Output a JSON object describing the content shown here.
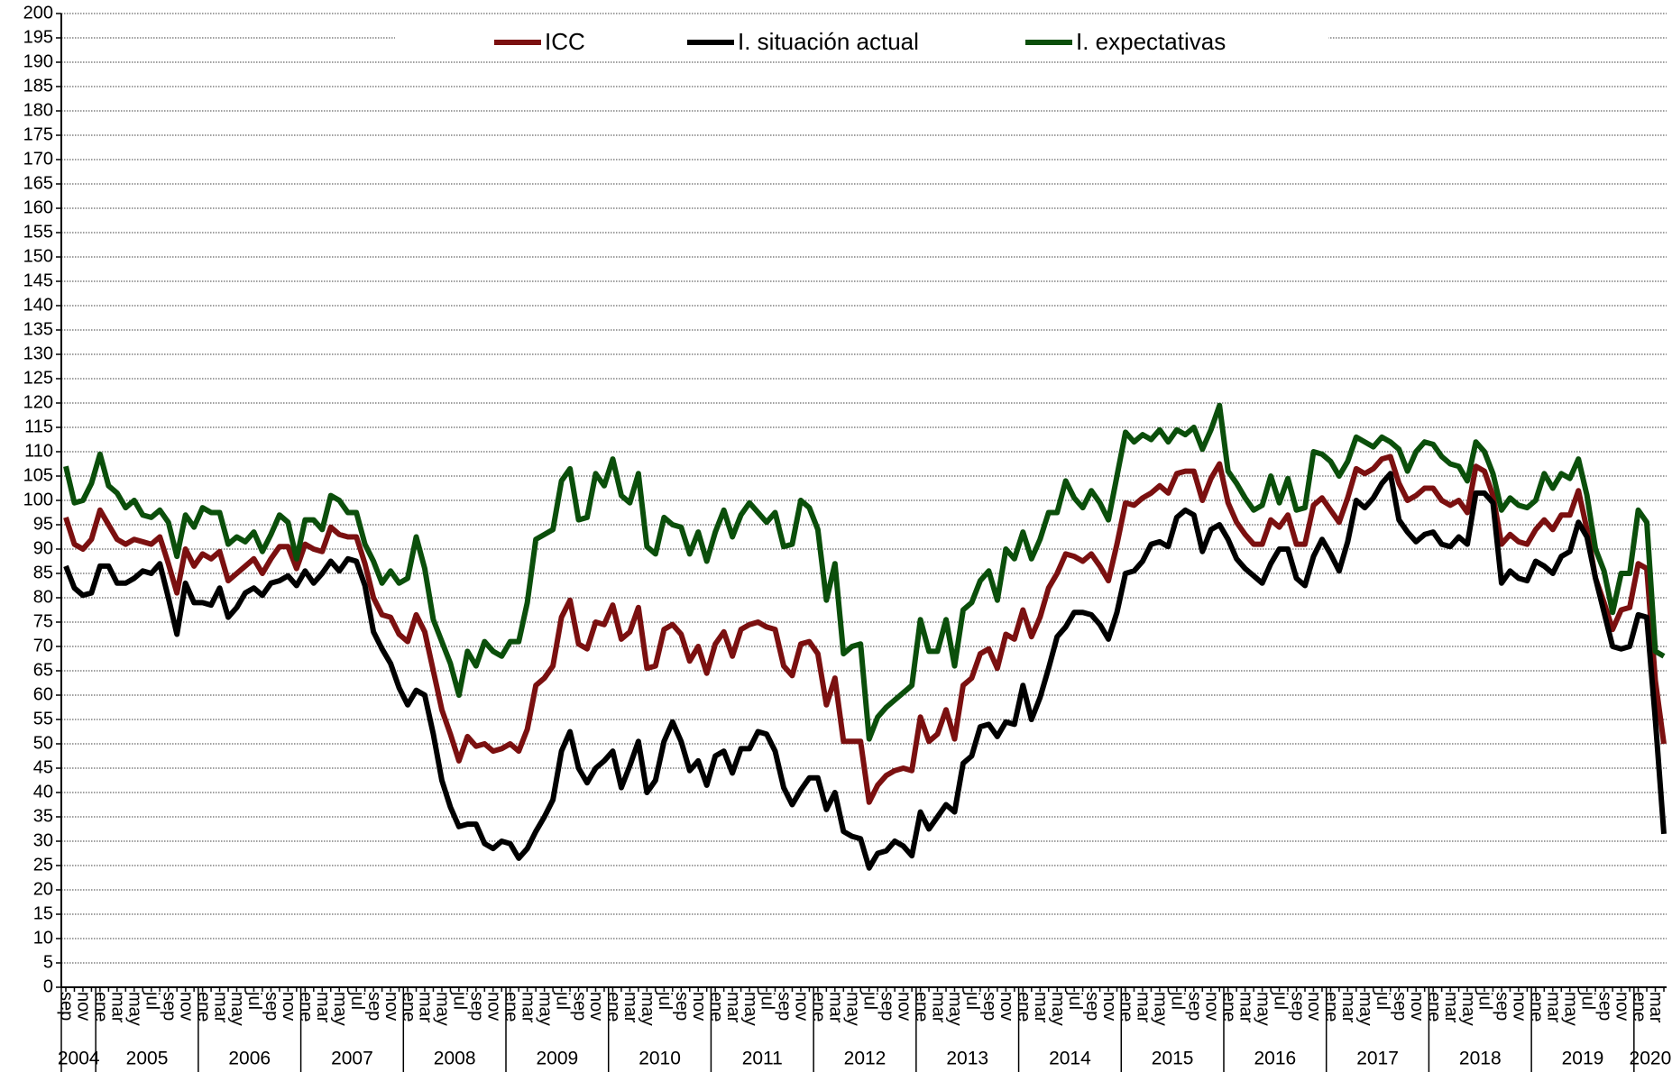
{
  "chart_data": {
    "type": "line",
    "categories": [
      "sep",
      null,
      "nov",
      null,
      "ene",
      null,
      "mar",
      null,
      "may",
      null,
      "jul",
      null,
      "sep",
      null,
      "nov",
      null,
      "ene",
      null,
      "mar",
      null,
      "may",
      null,
      "jul",
      null,
      "sep",
      null,
      "nov",
      null,
      "ene",
      null,
      "mar",
      null,
      "may",
      null,
      "jul",
      null,
      "sep",
      null,
      "nov",
      null,
      "ene",
      null,
      "mar",
      null,
      "may",
      null,
      "jul",
      null,
      "sep",
      null,
      "nov",
      null,
      "ene",
      null,
      "mar",
      null,
      "may",
      null,
      "jul",
      null,
      "sep",
      null,
      "nov",
      null,
      "ene",
      null,
      "mar",
      null,
      "may",
      null,
      "jul",
      null,
      "sep",
      null,
      "nov",
      null,
      "ene",
      null,
      "mar",
      null,
      "may",
      null,
      "jul",
      null,
      "sep",
      null,
      "nov",
      null,
      "ene",
      null,
      "mar",
      null,
      "may",
      null,
      "jul",
      null,
      "sep",
      null,
      "nov",
      null,
      "ene",
      null,
      "mar",
      null,
      "may",
      null,
      "jul",
      null,
      "sep",
      null,
      "nov",
      null,
      "ene",
      null,
      "mar",
      null,
      "may",
      null,
      "jul",
      null,
      "sep",
      null,
      "nov",
      null,
      "ene",
      null,
      "mar",
      null,
      "may",
      null,
      "jul",
      null,
      "sep",
      null,
      "nov",
      null,
      "ene",
      null,
      "mar",
      null,
      "may",
      null,
      "jul",
      null,
      "sep",
      null,
      "nov",
      null,
      "ene",
      null,
      "mar",
      null,
      "may",
      null,
      "jul",
      null,
      "sep",
      null,
      "nov",
      null,
      "ene",
      null,
      "mar",
      null,
      "may",
      null,
      "jul",
      null,
      "sep",
      null,
      "nov",
      null,
      "ene",
      null,
      "mar",
      null,
      "may",
      null,
      "jul",
      null,
      "sep",
      null,
      "nov",
      null,
      "ene",
      null,
      "mar",
      null
    ],
    "year_labels": [
      "2004",
      "2005",
      "2006",
      "2007",
      "2008",
      "2009",
      "2010",
      "2011",
      "2012",
      "2013",
      "2014",
      "2015",
      "2016",
      "2017",
      "2018",
      "2019",
      "2020"
    ],
    "series": [
      {
        "name": "ICC",
        "color": "#7b1010",
        "values": [
          96.5,
          91,
          90,
          92,
          98,
          95,
          92,
          91,
          92,
          91.5,
          91,
          92.5,
          87,
          81,
          90,
          86.5,
          89,
          88,
          89.5,
          83.5,
          85,
          86.5,
          88,
          85,
          88,
          90.5,
          90.5,
          86,
          91,
          90,
          89.5,
          94.5,
          93,
          92.5,
          92.5,
          87,
          80,
          76.5,
          76,
          72.5,
          71,
          76.5,
          73,
          65,
          57,
          52,
          46.5,
          51.5,
          49.5,
          50,
          48.5,
          49,
          50,
          48.5,
          53,
          62,
          63.5,
          66,
          76,
          79.5,
          70.5,
          69.5,
          75,
          74.5,
          78.5,
          71.5,
          73,
          78,
          65.5,
          66,
          73.5,
          74.5,
          72.5,
          67,
          70,
          64.5,
          70.5,
          73,
          68,
          73.5,
          74.5,
          75,
          74,
          73.5,
          66,
          64,
          70.5,
          71,
          68.5,
          58,
          63.5,
          50.5,
          50.5,
          50.5,
          38,
          41.5,
          43.5,
          44.5,
          45,
          44.5,
          55.5,
          50.5,
          52,
          57,
          51,
          62,
          63.5,
          68.5,
          69.5,
          65.5,
          72.5,
          71.5,
          77.5,
          72,
          76,
          82,
          85,
          89,
          88.5,
          87.5,
          89,
          86.5,
          83.5,
          91,
          99.5,
          99,
          100.5,
          101.5,
          103,
          101.5,
          105.5,
          106,
          106,
          100,
          104.5,
          107.5,
          99.5,
          95.5,
          93,
          91,
          91,
          96,
          94.5,
          97,
          91,
          91,
          99,
          100.5,
          98,
          95.5,
          100.5,
          106.5,
          105.5,
          106.5,
          108.5,
          109,
          103.5,
          100,
          101,
          102.5,
          102.5,
          100,
          99,
          100,
          97.5,
          107,
          106,
          101,
          91,
          93,
          91.5,
          91,
          94,
          96,
          94,
          97,
          97,
          102,
          94,
          84,
          79,
          73.5,
          77.5,
          78,
          87,
          86,
          63,
          50
        ]
      },
      {
        "name": "I. situación actual",
        "color": "#000000",
        "values": [
          86.5,
          82,
          80.5,
          81,
          86.5,
          86.5,
          83,
          83,
          84,
          85.5,
          85,
          87,
          80,
          72.5,
          83,
          79,
          79,
          78.5,
          82,
          76,
          78,
          81,
          82,
          80.5,
          83,
          83.5,
          84.5,
          82.5,
          85.5,
          83,
          85,
          87.5,
          85.5,
          88,
          87.5,
          82.5,
          73,
          69.5,
          66.5,
          61.5,
          58,
          61,
          60,
          52,
          42.5,
          37,
          33,
          33.5,
          33.5,
          29.5,
          28.5,
          30,
          29.5,
          26.5,
          28.5,
          32,
          35,
          38.5,
          48.5,
          52.5,
          45,
          42,
          45,
          46.5,
          48.5,
          41,
          45.5,
          50.5,
          40,
          42.5,
          50.5,
          54.5,
          50.5,
          44.5,
          46.5,
          41.5,
          47.5,
          48.5,
          44,
          49,
          49,
          52.5,
          52,
          48.5,
          41,
          37.5,
          40.5,
          43,
          43,
          36.5,
          40,
          32,
          31,
          30.5,
          24.5,
          27.5,
          28,
          30,
          29,
          27,
          36,
          32.5,
          35,
          37.5,
          36,
          46,
          47.5,
          53.5,
          54,
          51.5,
          54.5,
          54,
          62,
          55,
          59.5,
          65.5,
          72,
          74,
          77,
          77,
          76.5,
          74.5,
          71.5,
          77,
          85,
          85.5,
          87.5,
          91,
          91.5,
          90.5,
          96.5,
          98,
          97,
          89.5,
          94,
          95,
          92,
          88,
          86,
          84.5,
          83,
          87,
          90,
          90,
          84,
          82.5,
          88.5,
          92,
          89,
          85.5,
          91.5,
          100,
          98.5,
          100.5,
          103.5,
          105.5,
          96,
          93.5,
          91.5,
          93,
          93.5,
          91,
          90.5,
          92.5,
          91,
          101.5,
          101.5,
          99.5,
          83,
          85.5,
          84,
          83.5,
          87.5,
          86.5,
          85,
          88.5,
          89.5,
          95.5,
          92.5,
          84,
          77,
          70,
          69.5,
          70,
          76.5,
          76,
          55,
          31.5
        ]
      },
      {
        "name": "I. expectativas",
        "color": "#0b4f0b",
        "values": [
          107,
          99.5,
          100,
          103.5,
          109.5,
          103,
          101.5,
          98.5,
          100,
          97,
          96.5,
          98,
          95.5,
          88.5,
          97,
          94.5,
          98.5,
          97.5,
          97.5,
          91,
          92.5,
          91.5,
          93.5,
          89.5,
          93,
          97,
          95.5,
          88,
          96,
          96,
          94,
          101,
          100,
          97.5,
          97.5,
          91,
          87.5,
          83,
          85.5,
          83,
          84,
          92.5,
          86,
          75.5,
          71,
          66.5,
          60,
          69,
          66,
          71,
          69,
          68,
          71,
          71,
          79,
          92,
          93,
          94,
          104,
          106.5,
          96,
          96.5,
          105.5,
          103,
          108.5,
          101,
          99.5,
          105.5,
          90.5,
          89,
          96.5,
          95,
          94.5,
          89,
          93.5,
          87.5,
          93.5,
          98,
          92.5,
          97,
          99.5,
          97.5,
          95.5,
          97.5,
          90.5,
          91,
          100,
          98.5,
          94,
          79.5,
          87,
          68.5,
          70,
          70.5,
          51,
          55.5,
          57.5,
          59,
          60.5,
          62,
          75.5,
          69,
          69,
          75.5,
          66,
          77.5,
          79,
          83.5,
          85.5,
          79.5,
          90,
          88,
          93.5,
          88,
          92,
          97.5,
          97.5,
          104,
          100.5,
          98.5,
          102,
          99.5,
          96,
          105,
          114,
          112,
          113.5,
          112.5,
          114.5,
          112,
          114.5,
          113.5,
          115,
          110.5,
          114.5,
          119.5,
          106,
          103.5,
          100.5,
          98,
          99,
          105,
          99.5,
          104.5,
          98,
          98.5,
          110,
          109.5,
          108,
          105,
          108,
          113,
          112,
          111,
          113,
          112,
          110.5,
          106,
          110,
          112,
          111.5,
          109,
          107.5,
          107,
          104,
          112,
          110,
          105.5,
          98,
          100.5,
          99,
          98.5,
          100,
          105.5,
          102.5,
          105.5,
          104.5,
          108.5,
          101,
          90,
          85.5,
          77,
          85,
          85,
          98,
          95.5,
          69,
          68
        ]
      }
    ],
    "ylim": [
      0,
      200
    ],
    "yticks": [
      0,
      5,
      10,
      15,
      20,
      25,
      30,
      35,
      40,
      45,
      50,
      55,
      60,
      65,
      70,
      75,
      80,
      85,
      90,
      95,
      100,
      105,
      110,
      115,
      120,
      125,
      130,
      135,
      140,
      145,
      150,
      155,
      160,
      165,
      170,
      175,
      180,
      185,
      190,
      195,
      200
    ],
    "grid": true,
    "legend_position": "top"
  }
}
